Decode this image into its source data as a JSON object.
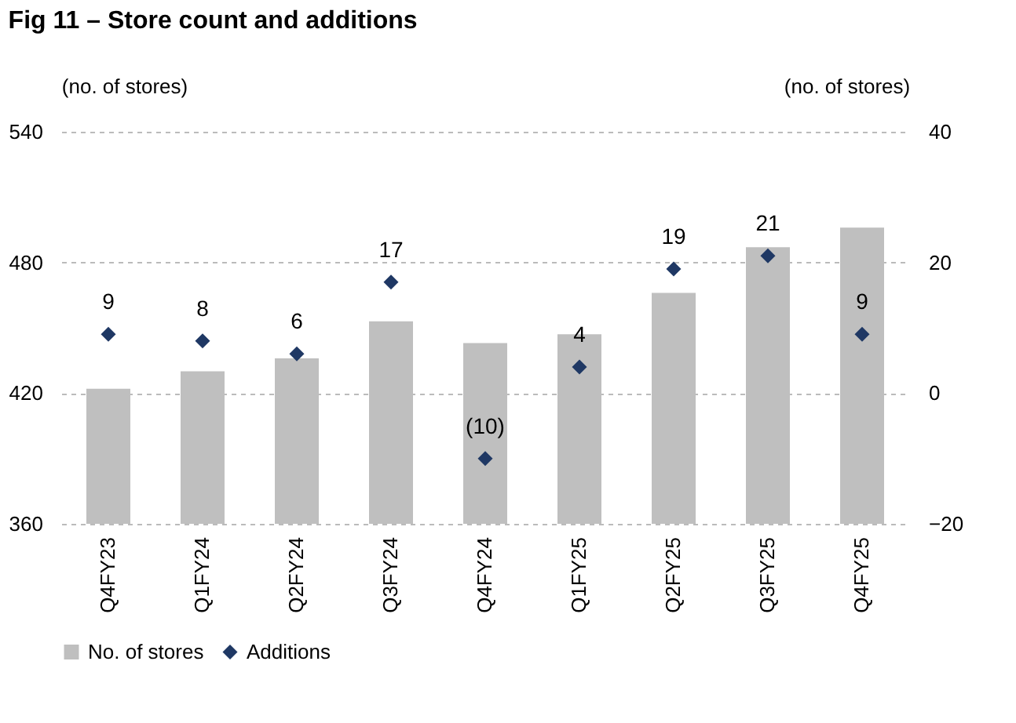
{
  "chart_data": {
    "type": "bar",
    "title": "Fig 11 – Store count and additions",
    "ylabel": "(no. of stores)",
    "y2label": "(no. of stores)",
    "categories": [
      "Q4FY23",
      "Q1FY24",
      "Q2FY24",
      "Q3FY24",
      "Q4FY24",
      "Q1FY25",
      "Q2FY25",
      "Q3FY25",
      "Q4FY25"
    ],
    "series": [
      {
        "name": "No. of stores",
        "color": "#bfbfbf",
        "values": [
          422,
          430,
          436,
          453,
          443,
          447,
          466,
          487,
          496
        ]
      },
      {
        "name": "Additions",
        "type": "scatter",
        "axis": "y2",
        "marker": "diamond",
        "color": "#1f3864",
        "values": [
          9,
          8,
          6,
          17,
          -10,
          4,
          19,
          21,
          9
        ],
        "value_labels": [
          "9",
          "8",
          "6",
          "17",
          "(10)",
          "4",
          "19",
          "21",
          "9"
        ]
      }
    ],
    "ylim": [
      360,
      540
    ],
    "yticks": [
      360,
      420,
      480,
      540
    ],
    "y2lim": [
      -20,
      40
    ],
    "y2ticks": [
      -20,
      0,
      20,
      40
    ],
    "grid": "y",
    "legend": "bottom"
  }
}
